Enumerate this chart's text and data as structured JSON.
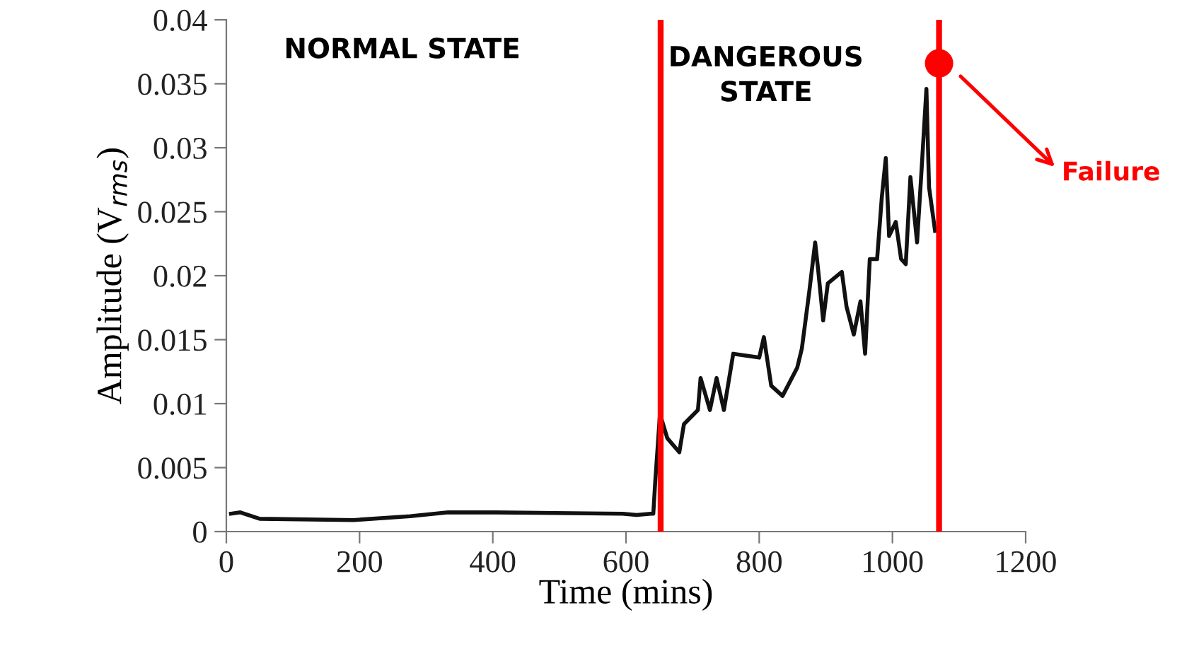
{
  "chart_data": {
    "type": "line",
    "xlabel": "Time (mins)",
    "ylabel": "Amplitude (V$_{rms}$)",
    "xlim": [
      0,
      1200
    ],
    "xticks": [
      0,
      200,
      400,
      600,
      800,
      1000,
      1200
    ],
    "ylim": [
      0,
      0.04
    ],
    "yticks": [
      0,
      0.005,
      0.01,
      0.015,
      0.02,
      0.025,
      0.03,
      0.035,
      0.04
    ],
    "grid": false,
    "marker": "none",
    "line_style": "solid",
    "series": [
      {
        "color": "#111111",
        "x": [
          7,
          21,
          50,
          191,
          276,
          333,
          403,
          595,
          616,
          637,
          641,
          644,
          651,
          662,
          680,
          687,
          708,
          712,
          726,
          736,
          747,
          761,
          800,
          807,
          818,
          835,
          857,
          864,
          875,
          884,
          889,
          896,
          903,
          924,
          931,
          942,
          952,
          959,
          966,
          977,
          984,
          990,
          995,
          1005,
          1013,
          1020,
          1027,
          1037,
          1044,
          1051,
          1055,
          1064
        ],
        "values": [
          0.0014,
          0.0015,
          0.001,
          0.0009,
          0.0012,
          0.0015,
          0.0015,
          0.0014,
          0.0013,
          0.0014,
          0.0014,
          0.004,
          0.0092,
          0.0073,
          0.0062,
          0.0084,
          0.0095,
          0.012,
          0.0095,
          0.012,
          0.0095,
          0.0139,
          0.0136,
          0.0152,
          0.0114,
          0.0106,
          0.0128,
          0.0143,
          0.0187,
          0.0226,
          0.0202,
          0.0165,
          0.0194,
          0.0203,
          0.0176,
          0.0154,
          0.018,
          0.0139,
          0.0213,
          0.0213,
          0.0261,
          0.0292,
          0.0231,
          0.0242,
          0.0213,
          0.0209,
          0.0277,
          0.0226,
          0.0285,
          0.0346,
          0.0269,
          0.0235
        ]
      },
      {
        "type": "scatter",
        "color": "#ff0000",
        "marker": "circle",
        "x": [
          1070
        ],
        "values": [
          0.0366
        ]
      }
    ],
    "ref_lines": [
      {
        "axis": "x",
        "value": 652,
        "color": "#ff0000",
        "line_style": "solid"
      },
      {
        "axis": "x",
        "value": 1070,
        "color": "#ff0000",
        "line_style": "solid"
      }
    ],
    "annotations": [
      "NORMAL STATE",
      "DANGEROUS\nSTATE",
      "Failure"
    ]
  }
}
